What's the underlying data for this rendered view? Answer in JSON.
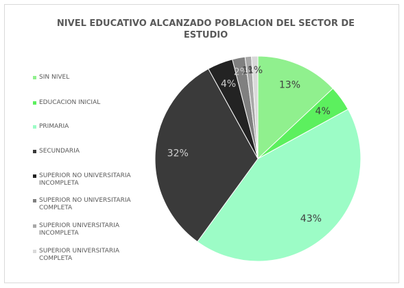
{
  "chart_data": {
    "type": "pie",
    "title": "NIVEL EDUCATIVO ALCANZADO POBLACION DEL SECTOR DE ESTUDIO",
    "categories": [
      "SIN NIVEL",
      "EDUCACION INICIAL",
      "PRIMARIA",
      "SECUNDARIA",
      "SUPERIOR NO UNIVERSITARIA INCOMPLETA",
      "SUPERIOR NO UNIVERSITARIA COMPLETA",
      "SUPERIOR UNIVERSITARIA INCOMPLETA",
      "SUPERIOR UNIVERSITARIA COMPLETA"
    ],
    "values": [
      13,
      4,
      43,
      32,
      4,
      2,
      1,
      1
    ],
    "value_labels": [
      "13%",
      "4%",
      "43%",
      "32%",
      "4%",
      "2%",
      "1%",
      "1%"
    ],
    "colors": [
      "#90f08e",
      "#5cf05e",
      "#9cfcc6",
      "#3a3a3a",
      "#232323",
      "#808080",
      "#a8a8a8",
      "#d9d9d9"
    ],
    "legend": "left"
  }
}
